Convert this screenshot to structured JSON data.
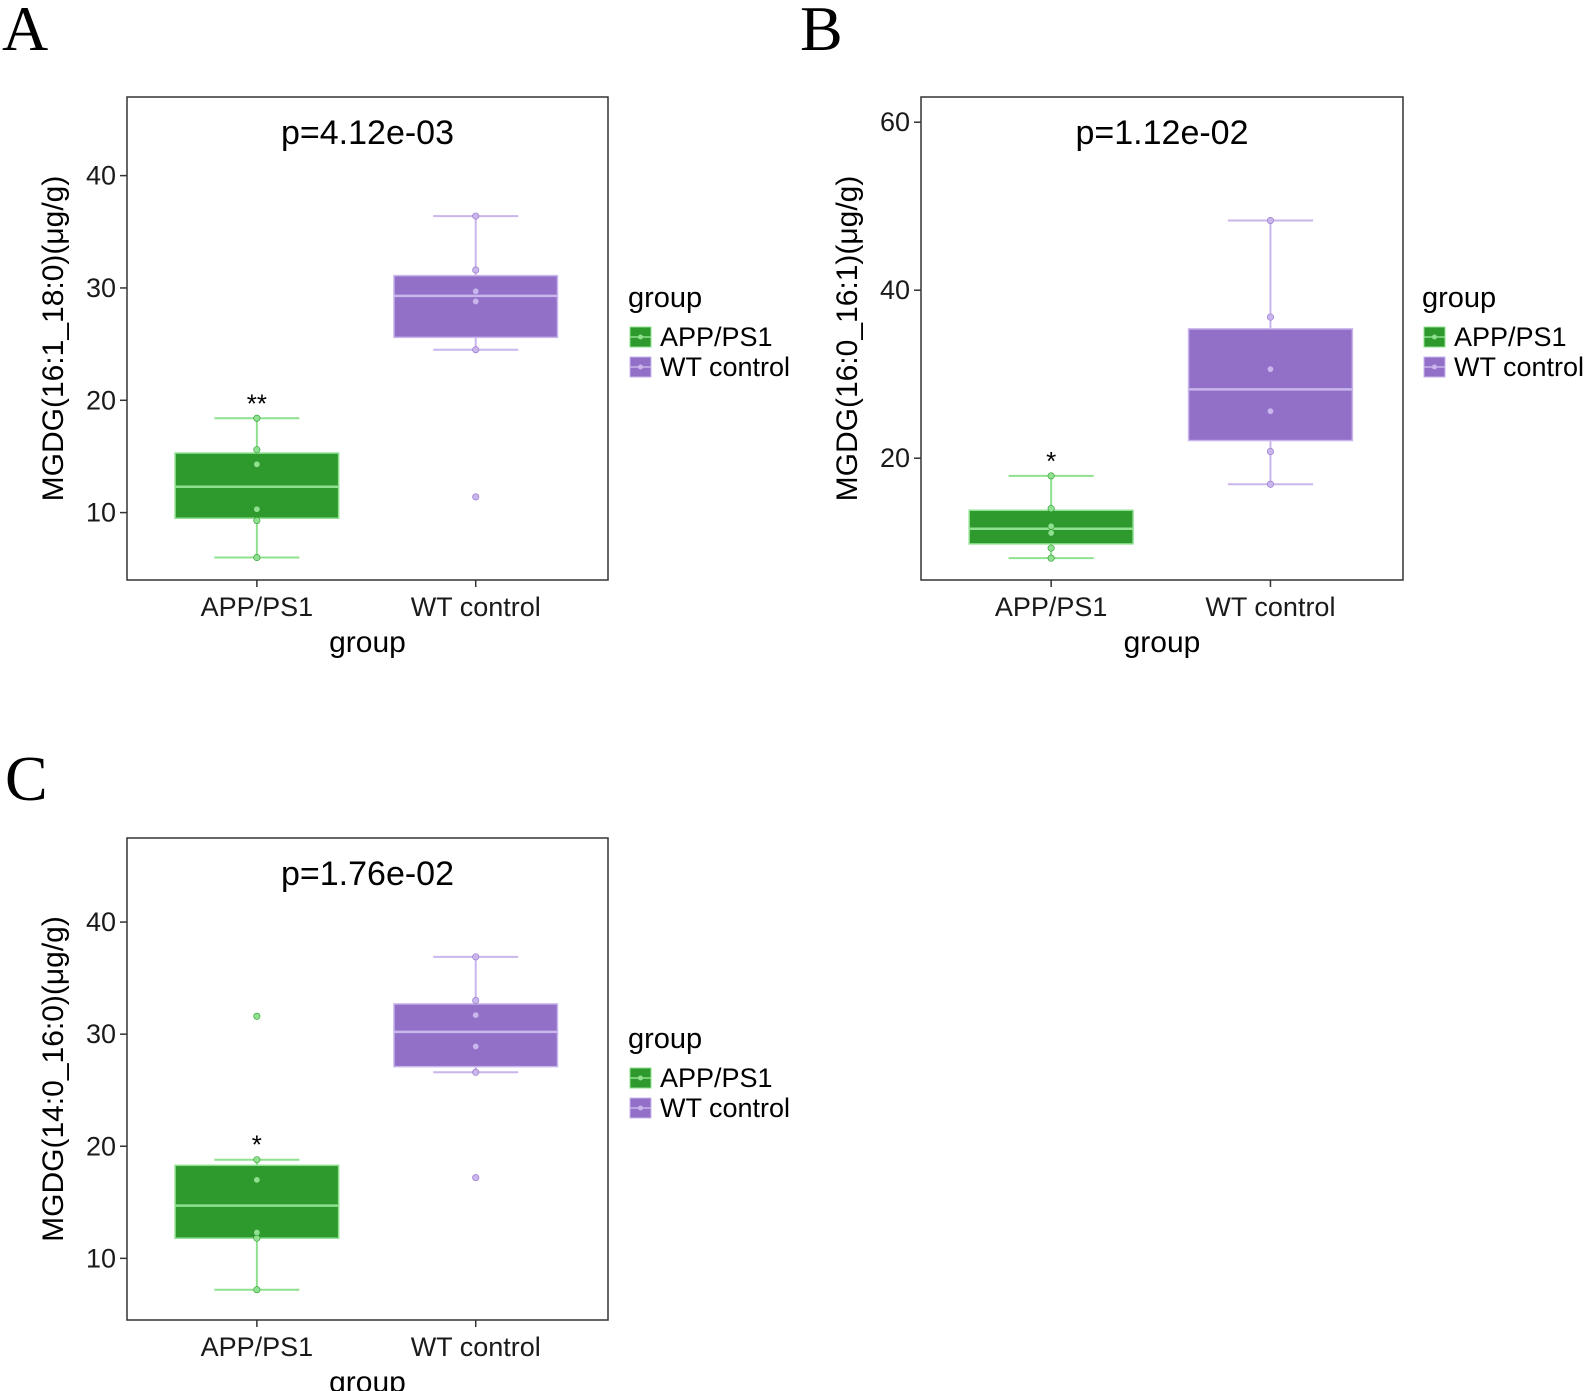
{
  "colors": {
    "app_fill": "#2e9a2e",
    "app_line": "#8fe08f",
    "wt_fill": "#9370c8",
    "wt_line": "#c9b6ec",
    "axis": "#333333"
  },
  "legend": {
    "title": "group",
    "entries": [
      "APP/PS1",
      "WT control"
    ]
  },
  "chart_data": [
    {
      "panel": "A",
      "type": "box",
      "title": "p=4.12e-03",
      "xlabel": "group",
      "ylabel": "MGDG(16:1_18:0)(μg/g)",
      "categories": [
        "APP/PS1",
        "WT control"
      ],
      "ylim": [
        4,
        47
      ],
      "yticks": [
        10,
        20,
        30,
        40
      ],
      "boxes": [
        {
          "group": "APP/PS1",
          "whisker_low": 6.0,
          "q1": 9.5,
          "median": 12.3,
          "q3": 15.3,
          "whisker_high": 18.4,
          "points": [
            6.0,
            9.3,
            10.3,
            14.3,
            15.6,
            18.4
          ],
          "significance": "**"
        },
        {
          "group": "WT control",
          "whisker_low": 24.5,
          "q1": 25.6,
          "median": 29.3,
          "q3": 31.1,
          "whisker_high": 36.4,
          "points": [
            11.4,
            24.5,
            28.8,
            29.7,
            31.6,
            36.4
          ],
          "significance": ""
        }
      ]
    },
    {
      "panel": "B",
      "type": "box",
      "title": "p=1.12e-02",
      "xlabel": "group",
      "ylabel": "MGDG(16:0_16:1)(μg/g)",
      "categories": [
        "APP/PS1",
        "WT control"
      ],
      "ylim": [
        5.5,
        63
      ],
      "yticks": [
        20,
        40,
        60
      ],
      "boxes": [
        {
          "group": "APP/PS1",
          "whisker_low": 8.1,
          "q1": 9.8,
          "median": 11.6,
          "q3": 13.8,
          "whisker_high": 17.9,
          "points": [
            8.1,
            9.3,
            11.1,
            11.9,
            14.0,
            17.9
          ],
          "significance": "*"
        },
        {
          "group": "WT control",
          "whisker_low": 16.9,
          "q1": 22.1,
          "median": 28.2,
          "q3": 35.4,
          "whisker_high": 48.3,
          "points": [
            16.9,
            20.8,
            25.6,
            30.6,
            36.8,
            48.3
          ],
          "significance": ""
        }
      ]
    },
    {
      "panel": "C",
      "type": "box",
      "title": "p=1.76e-02",
      "xlabel": "group",
      "ylabel": "MGDG(14:0_16:0)(μg/g)",
      "categories": [
        "APP/PS1",
        "WT control"
      ],
      "ylim": [
        4.5,
        47.5
      ],
      "yticks": [
        10,
        20,
        30,
        40
      ],
      "boxes": [
        {
          "group": "APP/PS1",
          "whisker_low": 7.2,
          "q1": 11.8,
          "median": 14.7,
          "q3": 18.3,
          "whisker_high": 18.8,
          "points": [
            7.2,
            11.8,
            12.3,
            17.0,
            18.8,
            31.6
          ],
          "significance": "*"
        },
        {
          "group": "WT control",
          "whisker_low": 26.6,
          "q1": 27.1,
          "median": 30.2,
          "q3": 32.7,
          "whisker_high": 36.9,
          "points": [
            17.2,
            26.6,
            28.9,
            31.7,
            33.0,
            36.9
          ],
          "significance": ""
        }
      ]
    }
  ]
}
